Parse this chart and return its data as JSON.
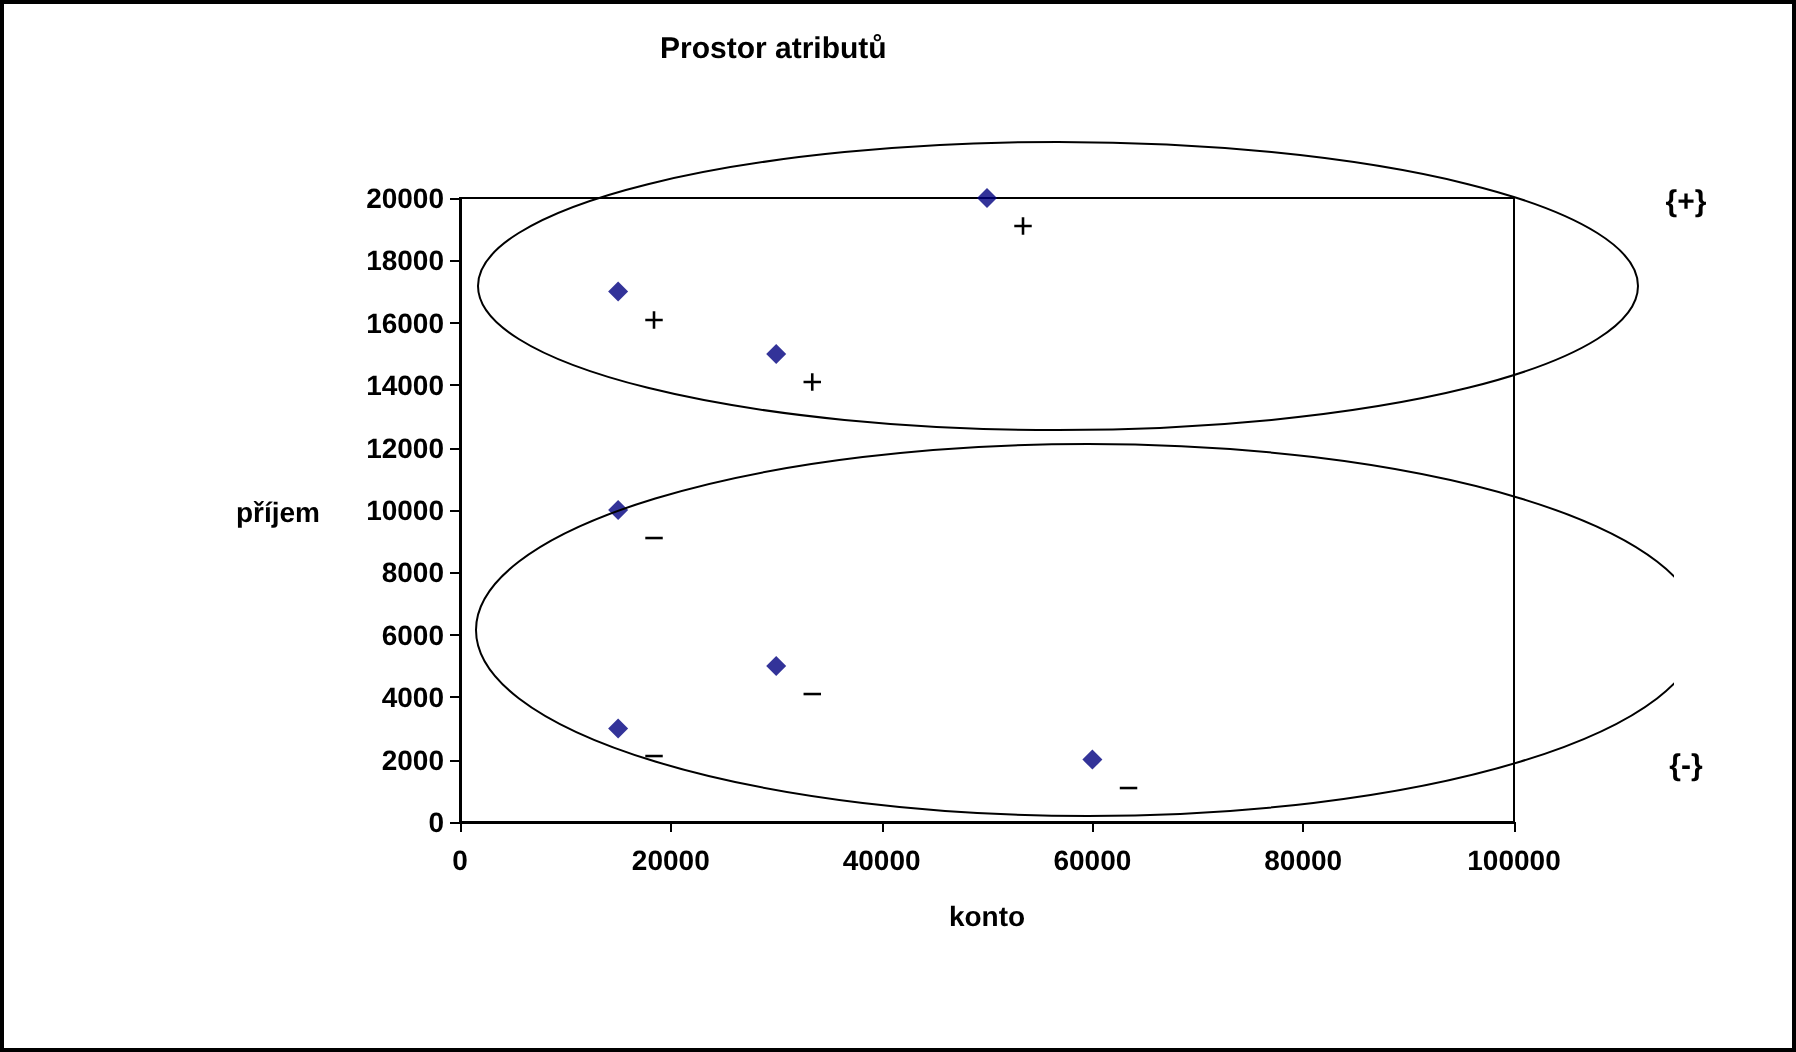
{
  "chart_data": {
    "type": "scatter",
    "title": "Prostor atributů",
    "xlabel": "konto",
    "ylabel": "příjem",
    "x": [
      15000,
      30000,
      50000,
      15000,
      30000,
      15000,
      60000
    ],
    "values": [
      17000,
      15000,
      20000,
      10000,
      5000,
      3000,
      2000
    ],
    "color": "#000080",
    "marker": "diamond",
    "grid": false,
    "xlim": [
      0,
      100000
    ],
    "xticks": [
      0,
      20000,
      40000,
      60000,
      80000,
      100000
    ],
    "ylim": [
      0,
      20000
    ],
    "yticks": [
      0,
      2000,
      4000,
      6000,
      8000,
      10000,
      12000,
      14000,
      16000,
      18000,
      20000
    ],
    "annotations": [
      {
        "text": "+",
        "x": 50000,
        "y": 20000
      },
      {
        "text": "+",
        "x": 15000,
        "y": 17000
      },
      {
        "text": "+",
        "x": 30000,
        "y": 15000
      },
      {
        "text": "−",
        "x": 15000,
        "y": 10000
      },
      {
        "text": "−",
        "x": 30000,
        "y": 5000
      },
      {
        "text": "−",
        "x": 15000,
        "y": 3000
      },
      {
        "text": "−",
        "x": 60000,
        "y": 2000
      },
      "{+}",
      "{-}"
    ]
  }
}
